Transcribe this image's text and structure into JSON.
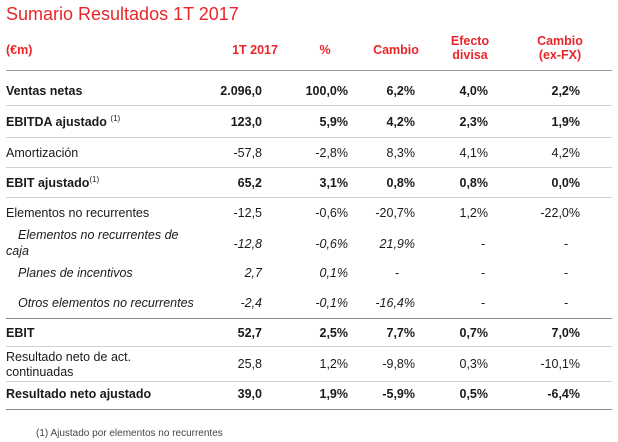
{
  "title": "Sumario Resultados 1T 2017",
  "headers": {
    "label": "(€m)",
    "c1": "1T 2017",
    "c2": "%",
    "c3": "Cambio",
    "c4_l1": "Efecto",
    "c4_l2": "divisa",
    "c5_l1": "Cambio",
    "c5_l2": "(ex-FX)"
  },
  "rows": [
    {
      "label": "Ventas netas",
      "c1": "2.096,0",
      "c2": "100,0%",
      "c3": "6,2%",
      "c4": "4,0%",
      "c5": "2,2%"
    },
    {
      "label": "EBITDA ajustado",
      "sup": "(1)",
      "c1": "123,0",
      "c2": "5,9%",
      "c3": "4,2%",
      "c4": "2,3%",
      "c5": "1,9%"
    },
    {
      "label": "Amortización",
      "c1": "-57,8",
      "c2": "-2,8%",
      "c3": "8,3%",
      "c4": "4,1%",
      "c5": "4,2%"
    },
    {
      "label": "EBIT ajustado",
      "sup": "(1)",
      "c1": "65,2",
      "c2": "3,1%",
      "c3": "0,8%",
      "c4": "0,8%",
      "c5": "0,0%"
    },
    {
      "label": "Elementos no recurrentes",
      "c1": "-12,5",
      "c2": "-0,6%",
      "c3": "-20,7%",
      "c4": "1,2%",
      "c5": "-22,0%"
    },
    {
      "label_l1": "Elementos no recurrentes de",
      "label_l2": "caja",
      "c1": "-12,8",
      "c2": "-0,6%",
      "c3": "21,9%",
      "c4": "-",
      "c5": "-"
    },
    {
      "label": "Planes de incentivos",
      "c1": "2,7",
      "c2": "0,1%",
      "c3": "-",
      "c4": "-",
      "c5": "-"
    },
    {
      "label": "Otros elementos no recurrentes",
      "c1": "-2,4",
      "c2": "-0,1%",
      "c3": "-16,4%",
      "c4": "-",
      "c5": "-"
    },
    {
      "label": "EBIT",
      "c1": "52,7",
      "c2": "2,5%",
      "c3": "7,7%",
      "c4": "0,7%",
      "c5": "7,0%"
    },
    {
      "label_l1": "Resultado neto de act.",
      "label_l2": "continuadas",
      "c1": "25,8",
      "c2": "1,2%",
      "c3": "-9,8%",
      "c4": "0,3%",
      "c5": "-10,1%"
    },
    {
      "label": "Resultado neto ajustado",
      "c1": "39,0",
      "c2": "1,9%",
      "c3": "-5,9%",
      "c4": "0,5%",
      "c5": "-6,4%"
    }
  ],
  "footnote": "(1)    Ajustado por elementos no recurrentes"
}
